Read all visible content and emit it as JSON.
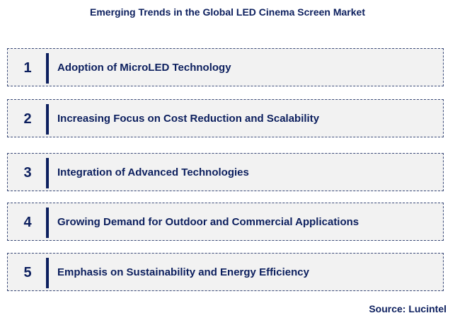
{
  "title": "Emerging Trends in the Global LED Cinema Screen Market",
  "trends": [
    {
      "number": "1",
      "label": "Adoption of MicroLED Technology"
    },
    {
      "number": "2",
      "label": "Increasing Focus on Cost Reduction and Scalability"
    },
    {
      "number": "3",
      "label": "Integration of Advanced Technologies"
    },
    {
      "number": "4",
      "label": "Growing Demand for Outdoor and Commercial Applications"
    },
    {
      "number": "5",
      "label": "Emphasis on Sustainability and Energy Efficiency"
    }
  ],
  "source": "Source: Lucintel",
  "colors": {
    "text": "#0c1f5e",
    "box": "#f2f2f2"
  }
}
